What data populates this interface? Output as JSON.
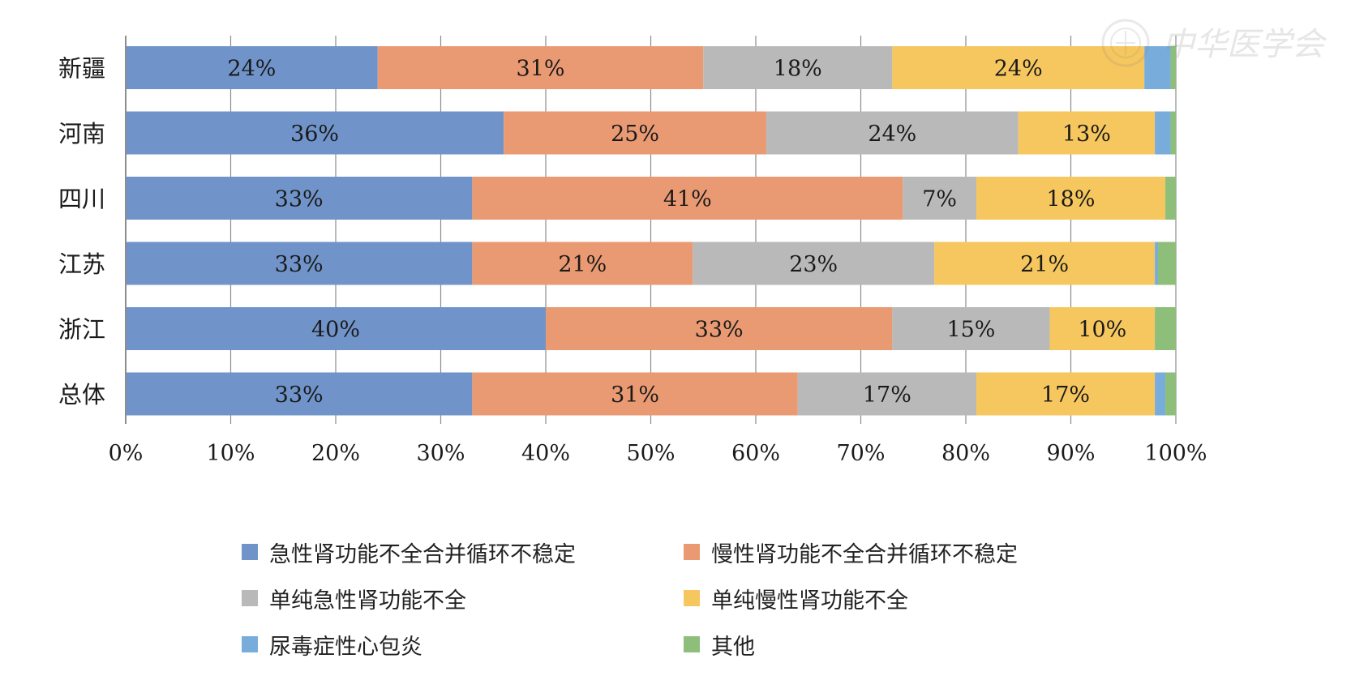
{
  "chart_data": {
    "type": "bar",
    "orientation": "horizontal",
    "stacked": true,
    "percent": true,
    "title": "",
    "xlabel": "",
    "ylabel": "",
    "xlim": [
      0,
      100
    ],
    "xticks": [
      "0%",
      "10%",
      "20%",
      "30%",
      "40%",
      "50%",
      "60%",
      "70%",
      "80%",
      "90%",
      "100%"
    ],
    "grid": true,
    "legend_position": "bottom",
    "categories": [
      "新疆",
      "河南",
      "四川",
      "江苏",
      "浙江",
      "总体"
    ],
    "series": [
      {
        "name": "急性肾功能不全合并循环不稳定",
        "color": "#7094CA",
        "values": [
          24,
          36,
          33,
          33,
          40,
          33
        ],
        "labels": [
          "24%",
          "36%",
          "33%",
          "33%",
          "40%",
          "33%"
        ]
      },
      {
        "name": "慢性肾功能不全合并循环不稳定",
        "color": "#EA9A72",
        "values": [
          31,
          25,
          41,
          21,
          33,
          31
        ],
        "labels": [
          "31%",
          "25%",
          "41%",
          "21%",
          "33%",
          "31%"
        ]
      },
      {
        "name": "单纯急性肾功能不全",
        "color": "#B9B9B9",
        "values": [
          18,
          24,
          7,
          23,
          15,
          17
        ],
        "labels": [
          "18%",
          "24%",
          "7%",
          "23%",
          "15%",
          "17%"
        ]
      },
      {
        "name": "单纯慢性肾功能不全",
        "color": "#F6C75E",
        "values": [
          24,
          13,
          18,
          21,
          10,
          17
        ],
        "labels": [
          "24%",
          "13%",
          "18%",
          "21%",
          "10%",
          "17%"
        ]
      },
      {
        "name": "尿毒症性心包炎",
        "color": "#78ADDB",
        "values": [
          2.5,
          1.5,
          0,
          0.3,
          0,
          1
        ],
        "labels": [
          "",
          "",
          "",
          "",
          "",
          ""
        ]
      },
      {
        "name": "其他",
        "color": "#8DBE7A",
        "values": [
          0.5,
          0.5,
          1,
          1.7,
          2,
          1
        ],
        "labels": [
          "",
          "",
          "",
          "",
          "",
          ""
        ]
      }
    ]
  },
  "watermark": {
    "text": "中华医学会",
    "icon": "society-seal-icon"
  }
}
